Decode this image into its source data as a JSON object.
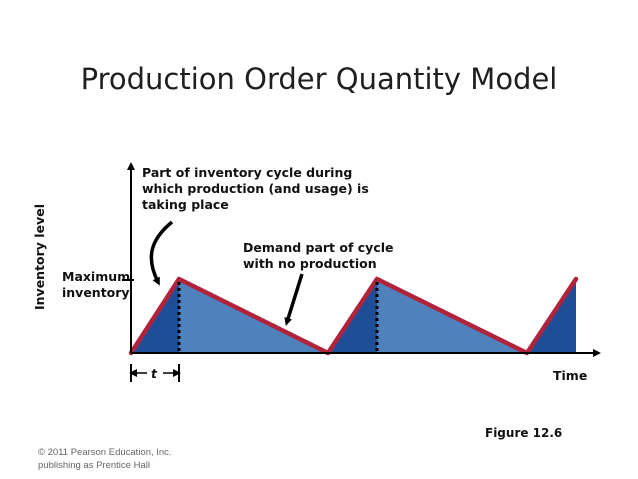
{
  "title": "Production Order Quantity Model",
  "y_axis_label": "Inventory level",
  "x_axis_label": "Time",
  "annotations": {
    "production_line1": "Part of inventory cycle during",
    "production_line2": "which production (and usage) is",
    "production_line3": "taking place",
    "demand_line1": "Demand part of cycle",
    "demand_line2": "with no production",
    "max_line1": "Maximum",
    "max_line2": "inventory",
    "t": "t"
  },
  "figure_label": "Figure 12.6",
  "copyright_line1": "© 2011 Pearson Education, Inc.",
  "copyright_line2": "publishing as Prentice Hall",
  "colors": {
    "light_fill": "#4f81bd",
    "dark_fill": "#1f4e99",
    "outline": "#b0233b",
    "axis": "#000000"
  }
}
